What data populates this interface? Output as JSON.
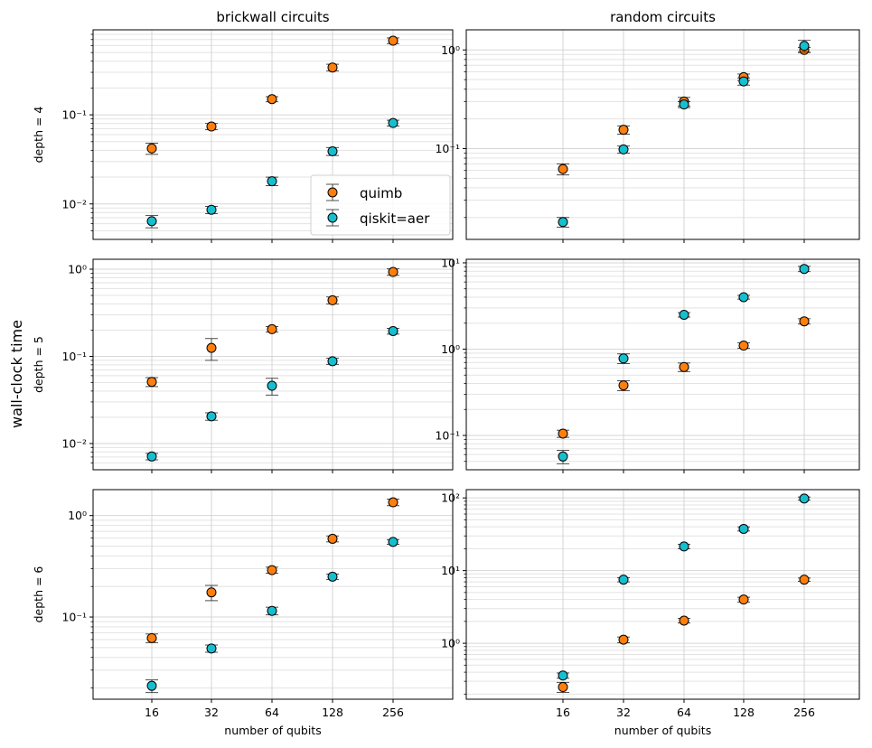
{
  "figure": {
    "ylabel": "wall-clock time",
    "colors": {
      "quimb": "#ff7f0e",
      "qiskit": "#17becf",
      "edge": "#000000",
      "grid": "#cccccc"
    }
  },
  "chart_data": [
    {
      "type": "scatter",
      "row": 0,
      "col": 0,
      "title": "brickwall circuits",
      "ylabel": "depth = 4",
      "xlabel": "",
      "yscale": "log",
      "ylim": [
        0.004,
        0.9
      ],
      "yticks": [
        {
          "v": 0.01,
          "label": "10⁻²"
        },
        {
          "v": 0.1,
          "label": "10⁻¹"
        }
      ],
      "x": [
        16,
        32,
        64,
        128,
        256
      ],
      "x_tick_labels": [
        "16",
        "32",
        "64",
        "128",
        "256"
      ],
      "series": [
        {
          "name": "quimb",
          "values": [
            0.042,
            0.074,
            0.15,
            0.34,
            0.68
          ],
          "err": [
            0.006,
            0.006,
            0.01,
            0.03,
            0.05
          ]
        },
        {
          "name": "qiskit=aer",
          "values": [
            0.0064,
            0.0086,
            0.018,
            0.039,
            0.081
          ],
          "err": [
            0.001,
            0.0008,
            0.002,
            0.004,
            0.006
          ]
        }
      ],
      "legend": {
        "position": "lower-right",
        "entries": [
          "quimb",
          "qiskit=aer"
        ]
      }
    },
    {
      "type": "scatter",
      "row": 0,
      "col": 1,
      "title": "random circuits",
      "ylabel": "",
      "xlabel": "",
      "yscale": "log",
      "ylim": [
        0.012,
        1.6
      ],
      "yticks": [
        {
          "v": 0.1,
          "label": "10⁻¹"
        },
        {
          "v": 1,
          "label": "10⁰"
        }
      ],
      "x": [
        16,
        32,
        64,
        128,
        256
      ],
      "x_tick_labels": [
        "16",
        "32",
        "64",
        "128",
        "256"
      ],
      "series": [
        {
          "name": "quimb",
          "values": [
            0.062,
            0.155,
            0.3,
            0.53,
            1.0
          ],
          "err": [
            0.008,
            0.015,
            0.03,
            0.04,
            0.06
          ]
        },
        {
          "name": "qiskit=aer",
          "values": [
            0.018,
            0.098,
            0.28,
            0.48,
            1.1
          ],
          "err": [
            0.002,
            0.008,
            0.02,
            0.04,
            0.15
          ]
        }
      ]
    },
    {
      "type": "scatter",
      "row": 1,
      "col": 0,
      "title": "",
      "ylabel": "depth = 5",
      "xlabel": "",
      "yscale": "log",
      "ylim": [
        0.005,
        1.3
      ],
      "yticks": [
        {
          "v": 0.01,
          "label": "10⁻²"
        },
        {
          "v": 0.1,
          "label": "10⁻¹"
        },
        {
          "v": 1,
          "label": "10⁰"
        }
      ],
      "x": [
        16,
        32,
        64,
        128,
        256
      ],
      "x_tick_labels": [
        "16",
        "32",
        "64",
        "128",
        "256"
      ],
      "series": [
        {
          "name": "quimb",
          "values": [
            0.051,
            0.125,
            0.205,
            0.44,
            0.93
          ],
          "err": [
            0.006,
            0.035,
            0.015,
            0.04,
            0.08
          ]
        },
        {
          "name": "qiskit=aer",
          "values": [
            0.0071,
            0.0205,
            0.046,
            0.088,
            0.195
          ],
          "err": [
            0.0006,
            0.002,
            0.01,
            0.007,
            0.015
          ]
        }
      ]
    },
    {
      "type": "scatter",
      "row": 1,
      "col": 1,
      "title": "",
      "ylabel": "",
      "xlabel": "",
      "yscale": "log",
      "ylim": [
        0.04,
        11
      ],
      "yticks": [
        {
          "v": 0.1,
          "label": "10⁻¹"
        },
        {
          "v": 1,
          "label": "10⁰"
        },
        {
          "v": 10,
          "label": "10¹"
        }
      ],
      "x": [
        16,
        32,
        64,
        128,
        256
      ],
      "x_tick_labels": [
        "16",
        "32",
        "64",
        "128",
        "256"
      ],
      "series": [
        {
          "name": "quimb",
          "values": [
            0.105,
            0.38,
            0.62,
            1.1,
            2.1
          ],
          "err": [
            0.01,
            0.05,
            0.07,
            0.08,
            0.15
          ]
        },
        {
          "name": "qiskit=aer",
          "values": [
            0.057,
            0.78,
            2.5,
            4.0,
            8.5
          ],
          "err": [
            0.01,
            0.1,
            0.15,
            0.2,
            0.6
          ]
        }
      ]
    },
    {
      "type": "scatter",
      "row": 2,
      "col": 0,
      "title": "",
      "ylabel": "depth = 6",
      "xlabel": "number of qubits",
      "yscale": "log",
      "ylim": [
        0.0155,
        1.8
      ],
      "yticks": [
        {
          "v": 0.1,
          "label": "10⁻¹"
        },
        {
          "v": 1,
          "label": "10⁰"
        }
      ],
      "x": [
        16,
        32,
        64,
        128,
        256
      ],
      "x_tick_labels": [
        "16",
        "32",
        "64",
        "128",
        "256"
      ],
      "series": [
        {
          "name": "quimb",
          "values": [
            0.062,
            0.175,
            0.29,
            0.59,
            1.35
          ],
          "err": [
            0.006,
            0.03,
            0.02,
            0.04,
            0.1
          ]
        },
        {
          "name": "qiskit=aer",
          "values": [
            0.021,
            0.049,
            0.115,
            0.25,
            0.55
          ],
          "err": [
            0.003,
            0.004,
            0.01,
            0.015,
            0.03
          ]
        }
      ]
    },
    {
      "type": "scatter",
      "row": 2,
      "col": 1,
      "title": "",
      "ylabel": "",
      "xlabel": "number of qubits",
      "yscale": "log",
      "ylim": [
        0.17,
        130
      ],
      "yticks": [
        {
          "v": 1,
          "label": "10⁰"
        },
        {
          "v": 10,
          "label": "10¹"
        },
        {
          "v": 100,
          "label": "10²"
        }
      ],
      "x": [
        16,
        32,
        64,
        128,
        256
      ],
      "x_tick_labels": [
        "16",
        "32",
        "64",
        "128",
        "256"
      ],
      "series": [
        {
          "name": "quimb",
          "values": [
            0.25,
            1.12,
            2.05,
            4.0,
            7.5
          ],
          "err": [
            0.04,
            0.1,
            0.15,
            0.3,
            0.4
          ]
        },
        {
          "name": "qiskit=aer",
          "values": [
            0.36,
            7.5,
            21.5,
            37.5,
            98
          ],
          "err": [
            0.03,
            0.5,
            1.5,
            2.5,
            5
          ]
        }
      ]
    }
  ]
}
